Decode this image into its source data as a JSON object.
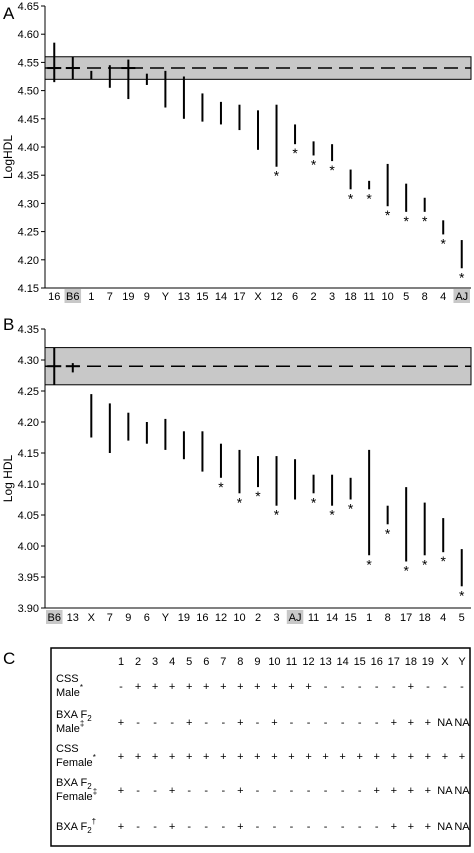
{
  "panels": [
    {
      "letter": "A",
      "chart_data": {
        "type": "range",
        "ylabel": "LogHDL",
        "ylim": [
          4.15,
          4.65
        ],
        "yticks": [
          "4.15",
          "4.20",
          "4.25",
          "4.30",
          "4.35",
          "4.40",
          "4.45",
          "4.50",
          "4.55",
          "4.60",
          "4.65"
        ],
        "reference_band": [
          4.52,
          4.56
        ],
        "reference_line": 4.54,
        "highlighted_categories": [
          "B6",
          "AJ"
        ],
        "categories": [
          "16",
          "B6",
          "1",
          "7",
          "19",
          "9",
          "Y",
          "13",
          "15",
          "14",
          "17",
          "X",
          "12",
          "6",
          "2",
          "3",
          "18",
          "11",
          "10",
          "5",
          "8",
          "4",
          "AJ"
        ],
        "low": [
          4.515,
          4.52,
          4.52,
          4.505,
          4.485,
          4.51,
          4.47,
          4.45,
          4.445,
          4.44,
          4.43,
          4.395,
          4.365,
          4.405,
          4.385,
          4.375,
          4.325,
          4.325,
          4.295,
          4.285,
          4.285,
          4.245,
          4.185
        ],
        "high": [
          4.585,
          4.56,
          4.535,
          4.545,
          4.555,
          4.53,
          4.535,
          4.525,
          4.495,
          4.48,
          4.475,
          4.465,
          4.475,
          4.44,
          4.41,
          4.405,
          4.36,
          4.34,
          4.37,
          4.335,
          4.31,
          4.27,
          4.235
        ],
        "mean": [
          4.54,
          4.54,
          null,
          null,
          4.54,
          null,
          null,
          null,
          null,
          null,
          null,
          null,
          null,
          null,
          null,
          null,
          null,
          null,
          null,
          null,
          null,
          null,
          null
        ],
        "significant": [
          false,
          false,
          false,
          false,
          false,
          false,
          false,
          false,
          false,
          false,
          false,
          false,
          true,
          true,
          true,
          true,
          true,
          true,
          true,
          true,
          true,
          true,
          true
        ],
        "star_label": "*"
      }
    },
    {
      "letter": "B",
      "chart_data": {
        "type": "range",
        "ylabel": "Log HDL",
        "ylim": [
          3.9,
          4.35
        ],
        "yticks": [
          "3.90",
          "3.95",
          "4.00",
          "4.05",
          "4.10",
          "4.15",
          "4.20",
          "4.25",
          "4.30",
          "4.35"
        ],
        "reference_band": [
          4.26,
          4.32
        ],
        "reference_line": 4.29,
        "highlighted_categories": [
          "B6",
          "AJ"
        ],
        "categories": [
          "B6",
          "13",
          "X",
          "7",
          "9",
          "6",
          "Y",
          "19",
          "16",
          "12",
          "10",
          "2",
          "3",
          "AJ",
          "11",
          "14",
          "15",
          "1",
          "8",
          "17",
          "18",
          "4",
          "5"
        ],
        "low": [
          4.26,
          4.28,
          4.175,
          4.15,
          4.17,
          4.165,
          4.155,
          4.14,
          4.12,
          4.11,
          4.085,
          4.095,
          4.065,
          4.075,
          4.085,
          4.065,
          4.075,
          3.985,
          4.035,
          3.975,
          3.985,
          3.99,
          3.935
        ],
        "high": [
          4.32,
          4.295,
          4.245,
          4.23,
          4.215,
          4.2,
          4.205,
          4.185,
          4.185,
          4.165,
          4.155,
          4.145,
          4.145,
          4.14,
          4.115,
          4.115,
          4.11,
          4.155,
          4.065,
          4.095,
          4.07,
          4.045,
          3.995
        ],
        "mean": [
          4.29,
          4.29,
          null,
          null,
          null,
          null,
          null,
          null,
          null,
          null,
          null,
          null,
          null,
          null,
          null,
          null,
          null,
          null,
          null,
          null,
          null,
          null,
          null
        ],
        "significant": [
          false,
          false,
          false,
          false,
          false,
          false,
          false,
          false,
          false,
          true,
          true,
          true,
          true,
          false,
          true,
          true,
          true,
          true,
          true,
          true,
          true,
          true,
          true
        ],
        "star_label": "*"
      }
    }
  ],
  "table": {
    "letter": "C",
    "columns": [
      "1",
      "2",
      "3",
      "4",
      "5",
      "6",
      "7",
      "8",
      "9",
      "10",
      "11",
      "12",
      "13",
      "14",
      "15",
      "16",
      "17",
      "18",
      "19",
      "X",
      "Y"
    ],
    "rows": [
      {
        "label_lines": [
          "CSS",
          "Male"
        ],
        "mark": "*",
        "cells": [
          "-",
          "+",
          "+",
          "+",
          "+",
          "+",
          "+",
          "+",
          "+",
          "+",
          "+",
          "+",
          "-",
          "-",
          "-",
          "-",
          "-",
          "+",
          "-",
          "-",
          "-"
        ]
      },
      {
        "label_lines": [
          "BXA F",
          "Male"
        ],
        "sub": "2",
        "mark": "‡",
        "cells": [
          "+",
          "-",
          "-",
          "-",
          "+",
          "-",
          "-",
          "+",
          "-",
          "+",
          "-",
          "-",
          "-",
          "-",
          "-",
          "-",
          "+",
          "+",
          "+",
          "NA",
          "NA"
        ]
      },
      {
        "label_lines": [
          "CSS",
          "Female"
        ],
        "mark": "*",
        "cells": [
          "+",
          "+",
          "+",
          "+",
          "+",
          "+",
          "+",
          "+",
          "+",
          "+",
          "+",
          "+",
          "+",
          "+",
          "+",
          "+",
          "+",
          "+",
          "+",
          "+",
          "+"
        ]
      },
      {
        "label_lines": [
          "BXA F",
          "Female"
        ],
        "sub": "2",
        "mark": "‡",
        "cells": [
          "+",
          "-",
          "-",
          "+",
          "-",
          "-",
          "-",
          "+",
          "-",
          "-",
          "-",
          "-",
          "-",
          "-",
          "-",
          "+",
          "+",
          "+",
          "+",
          "NA",
          "NA"
        ]
      },
      {
        "label_lines": [
          "BXA F"
        ],
        "sub": "2",
        "mark": "†",
        "cells": [
          "+",
          "-",
          "-",
          "+",
          "-",
          "-",
          "-",
          "+",
          "-",
          "-",
          "-",
          "-",
          "-",
          "-",
          "-",
          "-",
          "+",
          "+",
          "+",
          "NA",
          "NA"
        ]
      }
    ]
  }
}
